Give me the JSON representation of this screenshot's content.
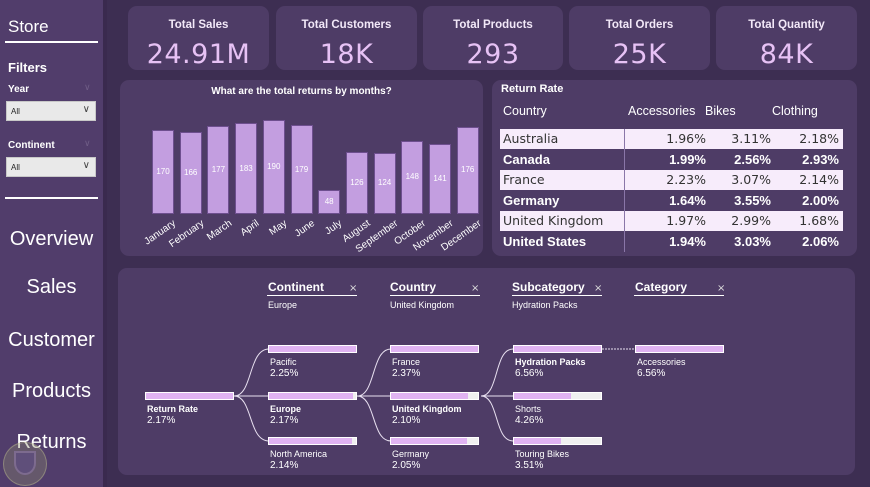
{
  "sidebar": {
    "title": "Store",
    "filters_title": "Filters",
    "filters": [
      {
        "label": "Year",
        "value": "All"
      },
      {
        "label": "Continent",
        "value": "All"
      }
    ],
    "nav": [
      "Overview",
      "Sales",
      "Customer",
      "Products",
      "Returns"
    ]
  },
  "kpis": [
    {
      "title": "Total Sales",
      "value": "24.91M"
    },
    {
      "title": "Total Customers",
      "value": "18K"
    },
    {
      "title": "Total Products",
      "value": "293"
    },
    {
      "title": "Total Orders",
      "value": "25K"
    },
    {
      "title": "Total Quantity",
      "value": "84K"
    }
  ],
  "chart_data": {
    "type": "bar",
    "title": "What are the total returns by months?",
    "categories": [
      "January",
      "February",
      "March",
      "April",
      "May",
      "June",
      "July",
      "August",
      "September",
      "October",
      "November",
      "December"
    ],
    "values": [
      170,
      166,
      177,
      183,
      190,
      179,
      48,
      126,
      124,
      148,
      141,
      176
    ],
    "xlabel": "",
    "ylabel": "",
    "ylim": [
      0,
      200
    ],
    "data_labels": true,
    "color": "#c39ee0"
  },
  "return_table": {
    "title": "Return Rate",
    "columns": [
      "Country",
      "Accessories",
      "Bikes",
      "Clothing"
    ],
    "rows": [
      {
        "country": "Australia",
        "values": [
          "1.96%",
          "3.11%",
          "2.18%"
        ]
      },
      {
        "country": "Canada",
        "values": [
          "1.99%",
          "2.56%",
          "2.93%"
        ]
      },
      {
        "country": "France",
        "values": [
          "2.23%",
          "3.07%",
          "2.14%"
        ]
      },
      {
        "country": "Germany",
        "values": [
          "1.64%",
          "3.55%",
          "2.00%"
        ]
      },
      {
        "country": "United Kingdom",
        "values": [
          "1.97%",
          "2.99%",
          "1.68%"
        ]
      },
      {
        "country": "United States",
        "values": [
          "1.94%",
          "3.03%",
          "2.06%"
        ]
      }
    ]
  },
  "decomp_tree": {
    "levels": [
      {
        "header": "Continent",
        "selected": "Europe"
      },
      {
        "header": "Country",
        "selected": "United Kingdom"
      },
      {
        "header": "Subcategory",
        "selected": "Hydration Packs"
      },
      {
        "header": "Category",
        "selected": ""
      }
    ],
    "root": {
      "name": "Return Rate",
      "value": "2.17%",
      "fill": 1.0
    },
    "continents": [
      {
        "name": "Pacific",
        "value": "2.25%",
        "fill": 1.0
      },
      {
        "name": "Europe",
        "value": "2.17%",
        "fill": 0.96,
        "selected": true
      },
      {
        "name": "North America",
        "value": "2.14%",
        "fill": 0.95
      }
    ],
    "countries": [
      {
        "name": "France",
        "value": "2.37%",
        "fill": 1.0
      },
      {
        "name": "United Kingdom",
        "value": "2.10%",
        "fill": 0.89,
        "selected": true
      },
      {
        "name": "Germany",
        "value": "2.05%",
        "fill": 0.87
      }
    ],
    "subcategories": [
      {
        "name": "Hydration Packs",
        "value": "6.56%",
        "fill": 1.0,
        "selected": true
      },
      {
        "name": "Shorts",
        "value": "4.26%",
        "fill": 0.65
      },
      {
        "name": "Touring Bikes",
        "value": "3.51%",
        "fill": 0.54
      }
    ],
    "categories": [
      {
        "name": "Accessories",
        "value": "6.56%",
        "fill": 1.0
      }
    ],
    "close_icon": "×"
  }
}
